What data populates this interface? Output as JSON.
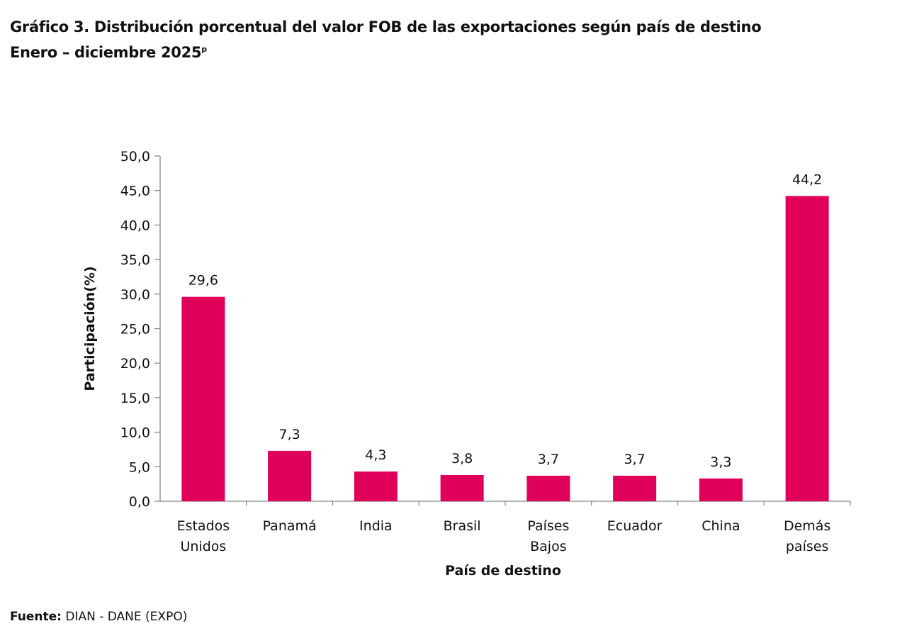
{
  "title": {
    "line1": "Gráfico 3. Distribución porcentual del valor FOB de las exportaciones según país de destino",
    "line2": "Enero – diciembre 2025",
    "superscript": "p"
  },
  "source": {
    "label": "Fuente:",
    "text": " DIAN - DANE (EXPO)"
  },
  "chart_data": {
    "type": "bar",
    "title": "Distribución porcentual del valor FOB de las exportaciones según país de destino",
    "xlabel": "País de destino",
    "ylabel": "Participación(%)",
    "ylim": [
      0,
      50
    ],
    "yticks": [
      "0,0",
      "5,0",
      "10,0",
      "15,0",
      "20,0",
      "25,0",
      "30,0",
      "35,0",
      "40,0",
      "45,0",
      "50,0"
    ],
    "categories": [
      [
        "Estados",
        "Unidos"
      ],
      [
        "Panamá"
      ],
      [
        "India"
      ],
      [
        "Brasil"
      ],
      [
        "Países",
        "Bajos"
      ],
      [
        "Ecuador"
      ],
      [
        "China"
      ],
      [
        "Demás",
        "países"
      ]
    ],
    "values": [
      29.6,
      7.3,
      4.3,
      3.8,
      3.7,
      3.7,
      3.3,
      44.2
    ],
    "value_labels": [
      "29,6",
      "7,3",
      "4,3",
      "3,8",
      "3,7",
      "3,7",
      "3,3",
      "44,2"
    ],
    "bar_color": "#e0005a",
    "grid": false,
    "legend": "none"
  }
}
